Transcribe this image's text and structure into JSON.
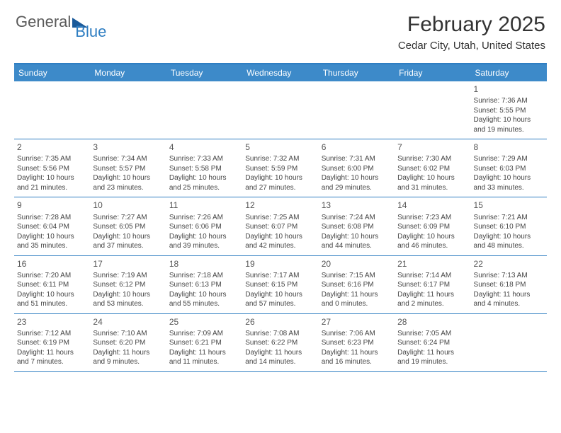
{
  "logo": {
    "general": "General",
    "blue": "Blue"
  },
  "title": "February 2025",
  "location": "Cedar City, Utah, United States",
  "colors": {
    "header_bar": "#3d8ac9",
    "border": "#2f7ec2",
    "text": "#333333",
    "logo_blue": "#2f7ec2",
    "logo_dark": "#1b5a9a",
    "background": "#ffffff"
  },
  "weekdays": [
    "Sunday",
    "Monday",
    "Tuesday",
    "Wednesday",
    "Thursday",
    "Friday",
    "Saturday"
  ],
  "weeks": [
    [
      null,
      null,
      null,
      null,
      null,
      null,
      {
        "n": "1",
        "sunrise": "7:36 AM",
        "sunset": "5:55 PM",
        "dl1": "Daylight: 10 hours",
        "dl2": "and 19 minutes."
      }
    ],
    [
      {
        "n": "2",
        "sunrise": "7:35 AM",
        "sunset": "5:56 PM",
        "dl1": "Daylight: 10 hours",
        "dl2": "and 21 minutes."
      },
      {
        "n": "3",
        "sunrise": "7:34 AM",
        "sunset": "5:57 PM",
        "dl1": "Daylight: 10 hours",
        "dl2": "and 23 minutes."
      },
      {
        "n": "4",
        "sunrise": "7:33 AM",
        "sunset": "5:58 PM",
        "dl1": "Daylight: 10 hours",
        "dl2": "and 25 minutes."
      },
      {
        "n": "5",
        "sunrise": "7:32 AM",
        "sunset": "5:59 PM",
        "dl1": "Daylight: 10 hours",
        "dl2": "and 27 minutes."
      },
      {
        "n": "6",
        "sunrise": "7:31 AM",
        "sunset": "6:00 PM",
        "dl1": "Daylight: 10 hours",
        "dl2": "and 29 minutes."
      },
      {
        "n": "7",
        "sunrise": "7:30 AM",
        "sunset": "6:02 PM",
        "dl1": "Daylight: 10 hours",
        "dl2": "and 31 minutes."
      },
      {
        "n": "8",
        "sunrise": "7:29 AM",
        "sunset": "6:03 PM",
        "dl1": "Daylight: 10 hours",
        "dl2": "and 33 minutes."
      }
    ],
    [
      {
        "n": "9",
        "sunrise": "7:28 AM",
        "sunset": "6:04 PM",
        "dl1": "Daylight: 10 hours",
        "dl2": "and 35 minutes."
      },
      {
        "n": "10",
        "sunrise": "7:27 AM",
        "sunset": "6:05 PM",
        "dl1": "Daylight: 10 hours",
        "dl2": "and 37 minutes."
      },
      {
        "n": "11",
        "sunrise": "7:26 AM",
        "sunset": "6:06 PM",
        "dl1": "Daylight: 10 hours",
        "dl2": "and 39 minutes."
      },
      {
        "n": "12",
        "sunrise": "7:25 AM",
        "sunset": "6:07 PM",
        "dl1": "Daylight: 10 hours",
        "dl2": "and 42 minutes."
      },
      {
        "n": "13",
        "sunrise": "7:24 AM",
        "sunset": "6:08 PM",
        "dl1": "Daylight: 10 hours",
        "dl2": "and 44 minutes."
      },
      {
        "n": "14",
        "sunrise": "7:23 AM",
        "sunset": "6:09 PM",
        "dl1": "Daylight: 10 hours",
        "dl2": "and 46 minutes."
      },
      {
        "n": "15",
        "sunrise": "7:21 AM",
        "sunset": "6:10 PM",
        "dl1": "Daylight: 10 hours",
        "dl2": "and 48 minutes."
      }
    ],
    [
      {
        "n": "16",
        "sunrise": "7:20 AM",
        "sunset": "6:11 PM",
        "dl1": "Daylight: 10 hours",
        "dl2": "and 51 minutes."
      },
      {
        "n": "17",
        "sunrise": "7:19 AM",
        "sunset": "6:12 PM",
        "dl1": "Daylight: 10 hours",
        "dl2": "and 53 minutes."
      },
      {
        "n": "18",
        "sunrise": "7:18 AM",
        "sunset": "6:13 PM",
        "dl1": "Daylight: 10 hours",
        "dl2": "and 55 minutes."
      },
      {
        "n": "19",
        "sunrise": "7:17 AM",
        "sunset": "6:15 PM",
        "dl1": "Daylight: 10 hours",
        "dl2": "and 57 minutes."
      },
      {
        "n": "20",
        "sunrise": "7:15 AM",
        "sunset": "6:16 PM",
        "dl1": "Daylight: 11 hours",
        "dl2": "and 0 minutes."
      },
      {
        "n": "21",
        "sunrise": "7:14 AM",
        "sunset": "6:17 PM",
        "dl1": "Daylight: 11 hours",
        "dl2": "and 2 minutes."
      },
      {
        "n": "22",
        "sunrise": "7:13 AM",
        "sunset": "6:18 PM",
        "dl1": "Daylight: 11 hours",
        "dl2": "and 4 minutes."
      }
    ],
    [
      {
        "n": "23",
        "sunrise": "7:12 AM",
        "sunset": "6:19 PM",
        "dl1": "Daylight: 11 hours",
        "dl2": "and 7 minutes."
      },
      {
        "n": "24",
        "sunrise": "7:10 AM",
        "sunset": "6:20 PM",
        "dl1": "Daylight: 11 hours",
        "dl2": "and 9 minutes."
      },
      {
        "n": "25",
        "sunrise": "7:09 AM",
        "sunset": "6:21 PM",
        "dl1": "Daylight: 11 hours",
        "dl2": "and 11 minutes."
      },
      {
        "n": "26",
        "sunrise": "7:08 AM",
        "sunset": "6:22 PM",
        "dl1": "Daylight: 11 hours",
        "dl2": "and 14 minutes."
      },
      {
        "n": "27",
        "sunrise": "7:06 AM",
        "sunset": "6:23 PM",
        "dl1": "Daylight: 11 hours",
        "dl2": "and 16 minutes."
      },
      {
        "n": "28",
        "sunrise": "7:05 AM",
        "sunset": "6:24 PM",
        "dl1": "Daylight: 11 hours",
        "dl2": "and 19 minutes."
      },
      null
    ]
  ],
  "labels": {
    "sunrise_prefix": "Sunrise: ",
    "sunset_prefix": "Sunset: "
  }
}
